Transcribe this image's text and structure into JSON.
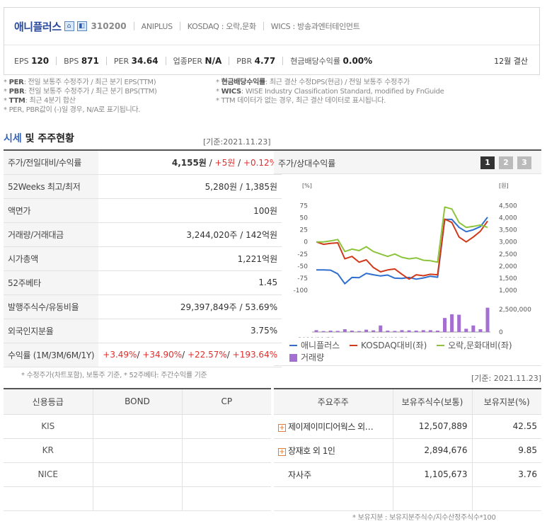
{
  "header": {
    "company": "애니플러스",
    "code": "310200",
    "en_name": "ANIPLUS",
    "market": "KOSDAQ : 오락,문화",
    "wics": "WICS : 방송과엔터테인먼트",
    "eps_label": "EPS",
    "eps": "120",
    "bps_label": "BPS",
    "bps": "871",
    "per_label": "PER",
    "per": "34.64",
    "ind_per_label": "업종PER",
    "ind_per": "N/A",
    "pbr_label": "PBR",
    "pbr": "4.77",
    "div_label": "현금배당수익률",
    "div": "0.00%",
    "settle": "12월 결산"
  },
  "notes": {
    "n1_key": "PER",
    "n1": ": 전일 보통주 수정주가 / 최근 분기 EPS(TTM)",
    "n2_key": "PBR",
    "n2": ": 전일 보통주 수정주가 / 최근 분기 BPS(TTM)",
    "n3_key": "TTM",
    "n3": ": 최근 4분기 합산",
    "n4": "* PER, PBR값이 (-)일 경우, N/A로 표기됩니다.",
    "n5_key": "현금배당수익률",
    "n5": ": 최근 결산 수정DPS(현금) / 전일 보통주 수정주가",
    "n6_key": "WICS",
    "n6": ": WISE Industry Classification Standard, modified by FnGuide",
    "n7": "* TTM 데이터가 없는 경우, 최근 결산 데이터로 표시됩니다."
  },
  "section": {
    "title_accent": "시세",
    "title_rest": " 및 주주현황",
    "base_date": "[기준:2021.11.23]"
  },
  "price_table": {
    "r1_label": "주가/전일대비/수익률",
    "r1_price": "4,155원",
    "r1_change": "+5원",
    "r1_rate": "+0.12%",
    "r2_label": "52Weeks 최고/최저",
    "r2_val": "5,280원 / 1,385원",
    "r3_label": "액면가",
    "r3_val": "100원",
    "r4_label": "거래량/거래대금",
    "r4_val": "3,244,020주 / 142억원",
    "r5_label": "시가총액",
    "r5_val": "1,221억원",
    "r6_label": "52주베타",
    "r6_val": "1.45",
    "r7_label": "발행주식수/유동비율",
    "r7_val": "29,397,849주 / 53.69%",
    "r8_label": "외국인지분율",
    "r8_val": "3.75%",
    "r9_label": "수익률 (1M/3M/6M/1Y)",
    "r9_1m": "+3.49%",
    "r9_3m": "+34.90%",
    "r9_6m": "+22.57%",
    "r9_1y": "+193.64%",
    "footnote": "* 수정주가(차트포함), 보통주 기준, * 52주베타: 주간수익률 기준"
  },
  "chart_panel": {
    "title": "주가/상대수익률",
    "pages": [
      "1",
      "2",
      "3"
    ],
    "legend": [
      "애니플러스",
      "KOSDAQ대비(좌)",
      "오락,문화대비(좌)",
      "거래량"
    ]
  },
  "chart_data": {
    "type": "line",
    "y_left_label": "[%]",
    "y_right_label": "[원]",
    "y_left_ticks": [
      "75",
      "50",
      "25",
      "0",
      "-25",
      "-50",
      "-75",
      "-100"
    ],
    "y_right_ticks": [
      "4,500",
      "4,000",
      "3,500",
      "3,000",
      "2,500",
      "2,000",
      "1,500",
      "1,000"
    ],
    "vol_ticks": [
      "2,500,000",
      "0"
    ],
    "x_ticks": [
      "2019/11/29",
      "2020/09/29",
      "2021/07/30"
    ],
    "ylim_left": [
      -100,
      80
    ],
    "ylim_right": [
      1000,
      4600
    ],
    "colors": {
      "price": "#2f6fcf",
      "kosdaq": "#d0391a",
      "culture": "#8cc43c",
      "volume": "#a46fd1"
    },
    "series": [
      {
        "name": "애니플러스",
        "axis": "right",
        "values": [
          1840,
          1840,
          1830,
          1680,
          1270,
          1530,
          1520,
          1700,
          1640,
          1590,
          1630,
          1500,
          1490,
          1530,
          1460,
          1510,
          1580,
          1540,
          3930,
          3930,
          3600,
          3420,
          3500,
          3630,
          4020
        ]
      },
      {
        "name": "KOSDAQ대비(좌)",
        "axis": "left",
        "values": [
          0,
          -5,
          -3,
          -2,
          -35,
          -30,
          -42,
          -37,
          -53,
          -62,
          -58,
          -56,
          -67,
          -77,
          -68,
          -70,
          -67,
          -68,
          47,
          40,
          10,
          0,
          10,
          22,
          43
        ]
      },
      {
        "name": "오락,문화대비(좌)",
        "axis": "left",
        "values": [
          0,
          0,
          2,
          5,
          -20,
          -15,
          -18,
          -10,
          -20,
          -25,
          -30,
          -25,
          -32,
          -35,
          -33,
          -38,
          -39,
          -42,
          72,
          68,
          40,
          30,
          32,
          35,
          30
        ]
      },
      {
        "name": "거래량",
        "axis": "volume",
        "values": [
          200000,
          100000,
          150000,
          120000,
          300000,
          150000,
          100000,
          250000,
          180000,
          700000,
          150000,
          120000,
          200000,
          180000,
          150000,
          200000,
          200000,
          150000,
          1500000,
          1900000,
          1850000,
          350000,
          700000,
          300000,
          2600000
        ]
      }
    ],
    "vol_max": 2800000
  },
  "credit": {
    "headers": [
      "신용등급",
      "BOND",
      "CP"
    ],
    "rows": [
      {
        "agency": "KIS",
        "bond": "",
        "cp": ""
      },
      {
        "agency": "KR",
        "bond": "",
        "cp": ""
      },
      {
        "agency": "NICE",
        "bond": "",
        "cp": ""
      }
    ]
  },
  "holders": {
    "base_date": "[기준: 2021.11.23]",
    "headers": [
      "주요주주",
      "보유주식수(보통)",
      "보유지분(%)"
    ],
    "rows": [
      {
        "name": "제이제이미디어웍스 외…",
        "shares": "12,507,889",
        "pct": "42.55"
      },
      {
        "name": "장재호 외 1인",
        "shares": "2,894,676",
        "pct": "9.85"
      },
      {
        "name": "자사주",
        "shares": "1,105,673",
        "pct": "3.76"
      }
    ],
    "footnote": "* 보유지분 : 보유지분주식수/지수산정주식수*100"
  }
}
